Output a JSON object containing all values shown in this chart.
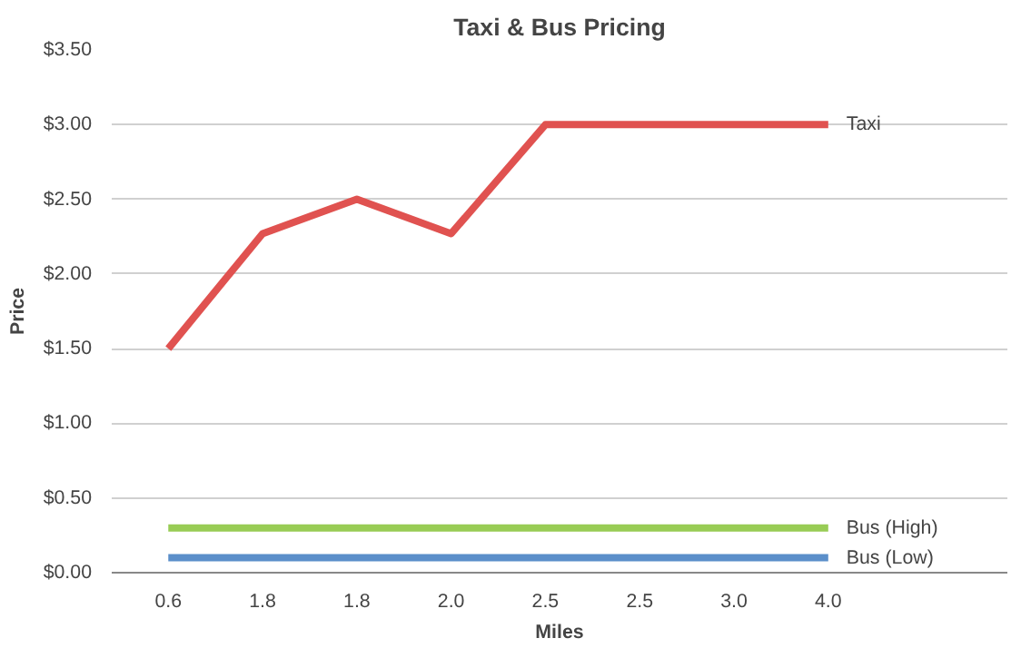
{
  "chart_data": {
    "type": "line",
    "title": "Taxi & Bus Pricing",
    "xlabel": "Miles",
    "ylabel": "Price",
    "categories": [
      "0.6",
      "1.8",
      "1.8",
      "2.0",
      "2.5",
      "2.5",
      "3.0",
      "4.0"
    ],
    "series": [
      {
        "name": "Taxi",
        "color": "#e05250",
        "values": [
          1.5,
          2.27,
          2.5,
          2.27,
          3.0,
          3.0,
          3.0,
          3.0
        ]
      },
      {
        "name": "Bus (High)",
        "color": "#98cc55",
        "values": [
          0.3,
          0.3,
          0.3,
          0.3,
          0.3,
          0.3,
          0.3,
          0.3
        ]
      },
      {
        "name": "Bus (Low)",
        "color": "#5b8fca",
        "values": [
          0.1,
          0.1,
          0.1,
          0.1,
          0.1,
          0.1,
          0.1,
          0.1
        ]
      }
    ],
    "ylim": [
      0,
      3.5
    ],
    "yticks": [
      {
        "value": 0,
        "label": "$0.00"
      },
      {
        "value": 0.5,
        "label": "$0.50"
      },
      {
        "value": 1,
        "label": "$1.00"
      },
      {
        "value": 1.5,
        "label": "$1.50"
      },
      {
        "value": 2,
        "label": "$2.00"
      },
      {
        "value": 2.5,
        "label": "$2.50"
      },
      {
        "value": 3,
        "label": "$3.00"
      },
      {
        "value": 3.5,
        "label": "$3.50"
      }
    ],
    "grid": "y",
    "marker": "none",
    "line_style": "solid"
  }
}
